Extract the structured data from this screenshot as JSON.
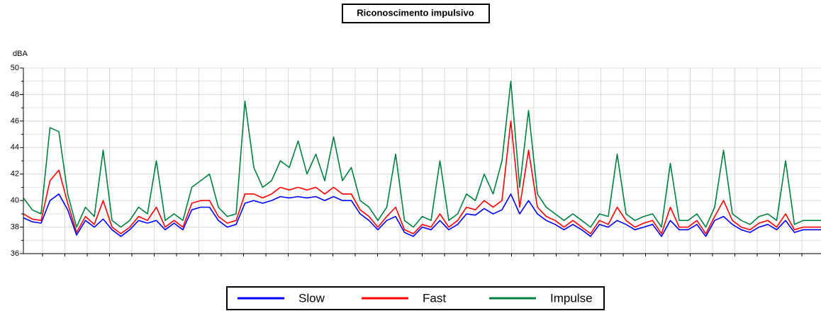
{
  "chart_data": {
    "type": "line",
    "title": "Riconoscimento impulsivo",
    "y_label": "dBA",
    "categories": [
      null,
      null,
      null,
      null,
      null,
      null,
      null,
      null,
      null,
      null,
      null,
      null,
      null,
      null,
      null,
      null,
      null,
      null,
      null,
      null,
      null,
      null,
      null,
      null,
      null,
      null,
      null,
      null,
      null,
      null,
      null,
      null,
      null,
      null,
      null,
      null,
      null,
      null,
      null,
      null,
      null,
      null,
      null,
      null,
      null,
      null,
      null,
      null,
      null,
      null,
      null,
      null,
      null,
      null,
      null,
      null,
      null,
      null,
      null,
      null,
      null,
      null,
      null,
      null,
      null,
      null,
      null,
      null,
      null,
      null,
      null,
      null,
      null,
      null,
      null,
      null,
      null,
      null,
      null,
      null,
      null,
      null,
      null,
      null,
      null,
      null,
      null,
      null,
      null,
      null,
      null
    ],
    "series": [
      {
        "name": "Slow",
        "color": "#0000ff",
        "values": [
          38.7,
          38.4,
          38.3,
          40,
          40.5,
          39.3,
          37.4,
          38.5,
          38,
          38.6,
          37.8,
          37.3,
          37.8,
          38.5,
          38.3,
          38.5,
          37.8,
          38.3,
          37.8,
          39.3,
          39.5,
          39.5,
          38.5,
          38,
          38.2,
          39.8,
          40,
          39.8,
          40,
          40.3,
          40.2,
          40.3,
          40.2,
          40.3,
          40,
          40.3,
          40,
          40,
          39,
          38.5,
          37.8,
          38.5,
          38.8,
          37.6,
          37.3,
          38,
          37.8,
          38.5,
          37.8,
          38.2,
          39,
          38.9,
          39.4,
          39,
          39.3,
          40.5,
          39,
          40,
          39,
          38.5,
          38.2,
          37.8,
          38.2,
          37.8,
          37.3,
          38.2,
          38,
          38.5,
          38.2,
          37.8,
          38,
          38.2,
          37.3,
          38.5,
          37.8,
          37.8,
          38.2,
          37.3,
          38.5,
          38.8,
          38.2,
          37.8,
          37.6,
          38,
          38.2,
          37.8,
          38.5,
          37.6,
          37.8,
          37.8,
          37.8
        ]
      },
      {
        "name": "Fast",
        "color": "#ff0000",
        "values": [
          39,
          38.6,
          38.5,
          41.5,
          42.3,
          39.8,
          37.6,
          38.8,
          38.2,
          40,
          38,
          37.5,
          38,
          38.8,
          38.5,
          39.5,
          38,
          38.5,
          38,
          39.8,
          40,
          40,
          38.8,
          38.3,
          38.5,
          40.5,
          40.5,
          40.2,
          40.5,
          41,
          40.8,
          41,
          40.8,
          41,
          40.5,
          41,
          40.5,
          40.5,
          39.3,
          38.8,
          38,
          38.8,
          39.5,
          37.8,
          37.5,
          38.2,
          38,
          39,
          38,
          38.5,
          39.5,
          39.3,
          40,
          39.5,
          40,
          46,
          39.5,
          43.8,
          39.5,
          38.8,
          38.5,
          38,
          38.5,
          38,
          37.5,
          38.5,
          38.2,
          39.5,
          38.5,
          38,
          38.3,
          38.5,
          37.5,
          39.5,
          38,
          38,
          38.5,
          37.5,
          38.8,
          40,
          38.5,
          38,
          37.8,
          38.3,
          38.5,
          38,
          39,
          37.8,
          38,
          38,
          38
        ]
      },
      {
        "name": "Impulse",
        "color": "#008040",
        "values": [
          40.2,
          39.3,
          39,
          45.5,
          45.2,
          40.5,
          38,
          39.5,
          38.8,
          43.8,
          38.5,
          38,
          38.5,
          39.5,
          39,
          43,
          38.5,
          39,
          38.5,
          41,
          41.5,
          42,
          39.5,
          38.8,
          39,
          47.5,
          42.5,
          41,
          41.5,
          43,
          42.5,
          44.5,
          42,
          43.5,
          41.5,
          44.8,
          41.5,
          42.5,
          40,
          39.5,
          38.5,
          39.5,
          43.5,
          38.5,
          38,
          38.8,
          38.5,
          43,
          38.5,
          39,
          40.5,
          40,
          42,
          40.5,
          43,
          49,
          41,
          46.8,
          40.5,
          39.5,
          39,
          38.5,
          39,
          38.5,
          38,
          39,
          38.8,
          43.5,
          39,
          38.5,
          38.8,
          39,
          38,
          42.8,
          38.5,
          38.5,
          39,
          38,
          39.5,
          43.8,
          39,
          38.5,
          38.2,
          38.8,
          39,
          38.5,
          43,
          38.2,
          38.5,
          38.5,
          38.5
        ]
      }
    ],
    "ylim": [
      36,
      50
    ],
    "yticks": [
      36,
      38,
      40,
      42,
      44,
      46,
      48,
      50
    ],
    "grid": true,
    "legend": "bottom"
  }
}
